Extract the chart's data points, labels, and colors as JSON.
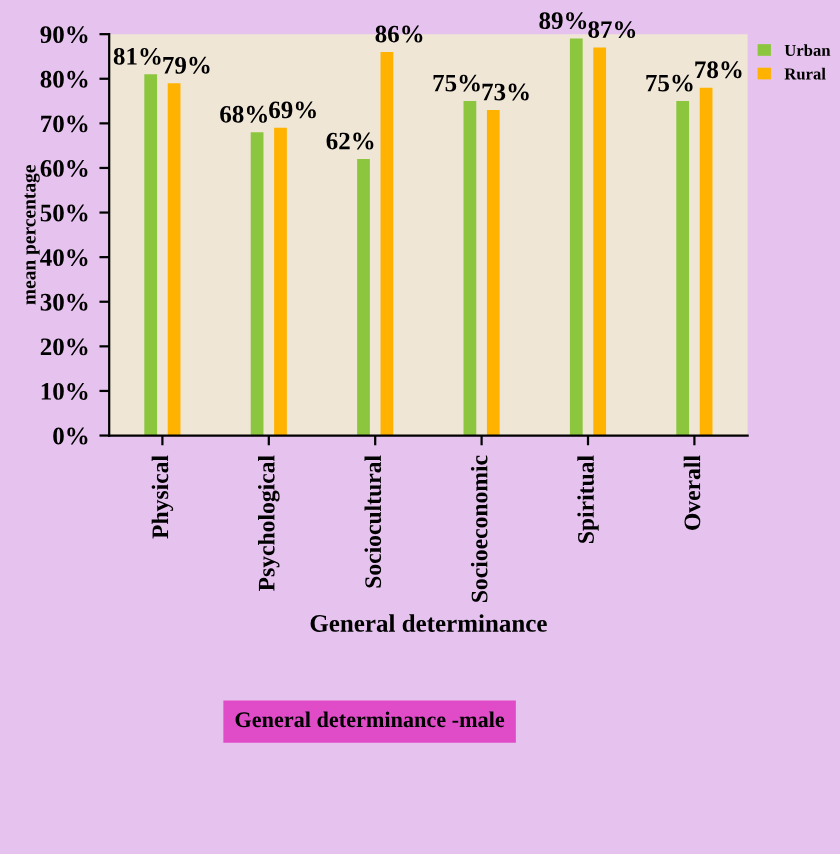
{
  "chart_data": {
    "type": "bar",
    "xlabel": "General determinance",
    "ylabel": "mean percentage",
    "categories": [
      "Physical",
      "Psychological",
      "Sociocultural",
      "Socioeconomic",
      "Spiritual",
      "Overall"
    ],
    "series": [
      {
        "name": "Urban",
        "color": "#8cc63f",
        "values": [
          81,
          68,
          62,
          75,
          89,
          75
        ],
        "value_labels": [
          "81%",
          "68%",
          "62%",
          "75%",
          "89%",
          "75%"
        ]
      },
      {
        "name": "Rural",
        "color": "#ffb300",
        "values": [
          79,
          69,
          86,
          73,
          87,
          78
        ],
        "value_labels": [
          "79%",
          "69%",
          "86%",
          "73%",
          "87%",
          "78%"
        ]
      }
    ],
    "ylim": [
      0,
      90
    ],
    "yticks": [
      {
        "value": 0,
        "label": "0%"
      },
      {
        "value": 10,
        "label": "10%"
      },
      {
        "value": 20,
        "label": "20%"
      },
      {
        "value": 30,
        "label": "30%"
      },
      {
        "value": 40,
        "label": "40%"
      },
      {
        "value": 50,
        "label": "50%"
      },
      {
        "value": 60,
        "label": "60%"
      },
      {
        "value": 70,
        "label": "70%"
      },
      {
        "value": 80,
        "label": "80%"
      },
      {
        "value": 90,
        "label": "90%"
      }
    ],
    "grid": false,
    "legend": "top right",
    "annotations": [
      "General determinance -male"
    ]
  }
}
